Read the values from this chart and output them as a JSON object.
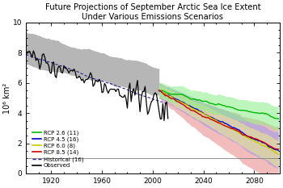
{
  "title": "Future Projections of September Arctic Sea Ice Extent\nUnder Various Emissions Scenarios",
  "ylabel": "10⁶ km²",
  "xlim": [
    1900,
    2100
  ],
  "ylim": [
    0,
    10
  ],
  "yticks": [
    0,
    2,
    4,
    6,
    8,
    10
  ],
  "xticks": [
    1920,
    1960,
    2000,
    2040,
    2080
  ],
  "background_color": "#ffffff",
  "horizontal_line_y": 1.0,
  "colors": {
    "rcp26": "#00bb00",
    "rcp45": "#0000cc",
    "rcp60": "#cccc00",
    "rcp85": "#cc0000",
    "observed": "#000000",
    "shade_hist": "#aaaaaa",
    "shade_rcp26": "#88ee88",
    "shade_rcp45": "#9999ee",
    "shade_rcp60": "#eeee88",
    "shade_rcp85": "#ee9999"
  }
}
